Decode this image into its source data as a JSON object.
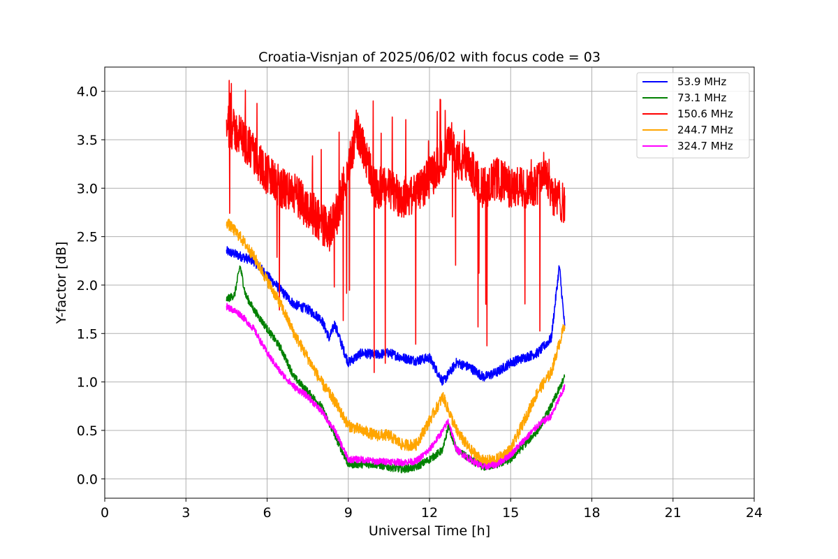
{
  "chart_data": {
    "type": "line",
    "title": "Croatia-Visnjan of 2025/06/02 with focus code = 03",
    "xlabel": "Universal Time [h]",
    "ylabel": "Y-factor [dB]",
    "xlim": [
      0,
      24
    ],
    "ylim": [
      -0.2,
      4.25
    ],
    "xticks": [
      0,
      3,
      6,
      9,
      12,
      15,
      18,
      21,
      24
    ],
    "yticks": [
      0.0,
      0.5,
      1.0,
      1.5,
      2.0,
      2.5,
      3.0,
      3.5,
      4.0
    ],
    "ytick_labels": [
      "0.0",
      "0.5",
      "1.0",
      "1.5",
      "2.0",
      "2.5",
      "3.0",
      "3.5",
      "4.0"
    ],
    "grid": true,
    "legend_position": "top-right",
    "series": [
      {
        "name": "53.9 MHz",
        "color": "#0000ff",
        "x": [
          4.5,
          5.0,
          5.5,
          6.0,
          6.5,
          7.0,
          7.5,
          8.0,
          8.3,
          8.5,
          8.8,
          9.0,
          9.5,
          10.0,
          10.5,
          11.0,
          11.5,
          12.0,
          12.5,
          13.0,
          13.5,
          14.0,
          14.5,
          15.0,
          15.5,
          16.0,
          16.5,
          16.8,
          17.0
        ],
        "values": [
          2.35,
          2.3,
          2.25,
          2.1,
          1.95,
          1.8,
          1.75,
          1.65,
          1.45,
          1.6,
          1.35,
          1.2,
          1.3,
          1.28,
          1.3,
          1.25,
          1.22,
          1.25,
          1.0,
          1.2,
          1.15,
          1.05,
          1.1,
          1.2,
          1.25,
          1.3,
          1.45,
          2.2,
          1.55
        ]
      },
      {
        "name": "73.1 MHz",
        "color": "#008000",
        "x": [
          4.5,
          4.8,
          5.0,
          5.2,
          5.5,
          6.0,
          6.5,
          7.0,
          7.5,
          8.0,
          8.5,
          9.0,
          9.5,
          10.0,
          10.5,
          11.0,
          11.5,
          12.0,
          12.5,
          12.7,
          13.0,
          13.5,
          14.0,
          14.5,
          15.0,
          15.5,
          16.0,
          16.5,
          17.0
        ],
        "values": [
          1.85,
          1.9,
          2.2,
          1.9,
          1.75,
          1.55,
          1.35,
          1.05,
          0.9,
          0.75,
          0.45,
          0.15,
          0.15,
          0.15,
          0.12,
          0.1,
          0.12,
          0.2,
          0.3,
          0.55,
          0.3,
          0.2,
          0.12,
          0.15,
          0.2,
          0.35,
          0.5,
          0.75,
          1.05
        ]
      },
      {
        "name": "150.6 MHz",
        "color": "#ff0000",
        "x": [
          4.5,
          5.0,
          5.5,
          6.0,
          6.5,
          7.0,
          7.5,
          8.0,
          8.3,
          8.6,
          9.0,
          9.3,
          9.6,
          10.0,
          10.5,
          11.0,
          11.5,
          12.0,
          12.5,
          12.8,
          13.0,
          13.5,
          14.0,
          14.5,
          15.0,
          15.5,
          16.0,
          16.3,
          16.6,
          17.0
        ],
        "values": [
          3.65,
          3.55,
          3.35,
          3.15,
          3.0,
          2.95,
          2.8,
          2.65,
          2.55,
          2.75,
          3.2,
          3.6,
          3.4,
          3.0,
          3.0,
          2.9,
          2.95,
          3.1,
          3.3,
          3.5,
          3.3,
          3.2,
          3.0,
          3.1,
          3.0,
          3.0,
          3.05,
          3.2,
          2.9,
          2.85
        ]
      },
      {
        "name": "244.7 MHz",
        "color": "#ffa500",
        "x": [
          4.5,
          5.0,
          5.5,
          6.0,
          6.5,
          7.0,
          7.5,
          8.0,
          8.5,
          9.0,
          9.5,
          10.0,
          10.5,
          11.0,
          11.5,
          12.0,
          12.5,
          13.0,
          13.5,
          14.0,
          14.5,
          15.0,
          15.5,
          16.0,
          16.5,
          17.0
        ],
        "values": [
          2.65,
          2.5,
          2.3,
          2.05,
          1.8,
          1.5,
          1.25,
          1.0,
          0.8,
          0.55,
          0.5,
          0.45,
          0.45,
          0.35,
          0.35,
          0.6,
          0.85,
          0.5,
          0.3,
          0.18,
          0.2,
          0.3,
          0.6,
          0.9,
          1.1,
          1.6
        ]
      },
      {
        "name": "324.7 MHz",
        "color": "#ff00ff",
        "x": [
          4.5,
          5.0,
          5.5,
          6.0,
          6.5,
          7.0,
          7.5,
          8.0,
          8.5,
          9.0,
          9.5,
          10.0,
          10.5,
          11.0,
          11.5,
          12.0,
          12.5,
          12.7,
          13.0,
          13.5,
          14.0,
          14.5,
          15.0,
          15.5,
          16.0,
          16.5,
          17.0
        ],
        "values": [
          1.78,
          1.7,
          1.55,
          1.3,
          1.1,
          0.95,
          0.85,
          0.7,
          0.5,
          0.2,
          0.2,
          0.18,
          0.18,
          0.17,
          0.18,
          0.3,
          0.5,
          0.6,
          0.3,
          0.2,
          0.12,
          0.15,
          0.25,
          0.4,
          0.55,
          0.65,
          0.95
        ]
      }
    ]
  }
}
